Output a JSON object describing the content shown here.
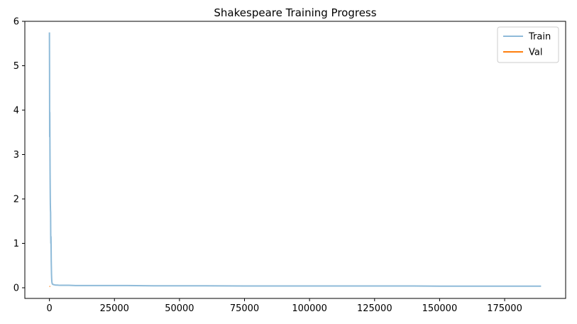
{
  "chart_data": {
    "type": "line",
    "title": "Shakespeare Training Progress",
    "xlabel": "",
    "ylabel": "",
    "xlim": [
      -9450,
      198450
    ],
    "ylim": [
      -0.24,
      6.0
    ],
    "x_ticks": [
      0,
      25000,
      50000,
      75000,
      100000,
      125000,
      150000,
      175000
    ],
    "x_tick_labels": [
      "0",
      "25000",
      "50000",
      "75000",
      "100000",
      "125000",
      "150000",
      "175000"
    ],
    "y_ticks": [
      0,
      1,
      2,
      3,
      4,
      5,
      6
    ],
    "y_tick_labels": [
      "0",
      "1",
      "2",
      "3",
      "4",
      "5",
      "6"
    ],
    "grid": false,
    "legend_position": "top-right",
    "series": [
      {
        "name": "Train",
        "color": "#1f77b4",
        "alpha": 0.5,
        "x": [
          0,
          50,
          100,
          150,
          200,
          250,
          300,
          350,
          400,
          450,
          500,
          550,
          600,
          650,
          700,
          750,
          800,
          850,
          900,
          950,
          1000,
          1100,
          1200,
          1400,
          1600,
          2000,
          2500,
          3000,
          4000,
          5000,
          7500,
          10000,
          15000,
          20000,
          25000,
          30000,
          40000,
          50000,
          60000,
          75000,
          90000,
          100000,
          110000,
          125000,
          140000,
          150000,
          160000,
          175000,
          185000,
          189000
        ],
        "y": [
          5.75,
          4.9,
          3.4,
          3.95,
          3.2,
          2.6,
          2.2,
          1.9,
          1.75,
          1.7,
          1.2,
          1.0,
          1.15,
          0.9,
          0.6,
          0.45,
          0.3,
          0.22,
          0.16,
          0.13,
          0.11,
          0.09,
          0.08,
          0.075,
          0.07,
          0.065,
          0.06,
          0.06,
          0.055,
          0.055,
          0.055,
          0.05,
          0.05,
          0.05,
          0.05,
          0.05,
          0.045,
          0.045,
          0.045,
          0.04,
          0.04,
          0.04,
          0.04,
          0.04,
          0.04,
          0.035,
          0.035,
          0.035,
          0.035,
          0.035
        ]
      },
      {
        "name": "Val",
        "color": "#ff7f0e",
        "alpha": 1,
        "x": [
          0,
          300
        ],
        "y": [
          0.03,
          0.03
        ]
      }
    ]
  }
}
